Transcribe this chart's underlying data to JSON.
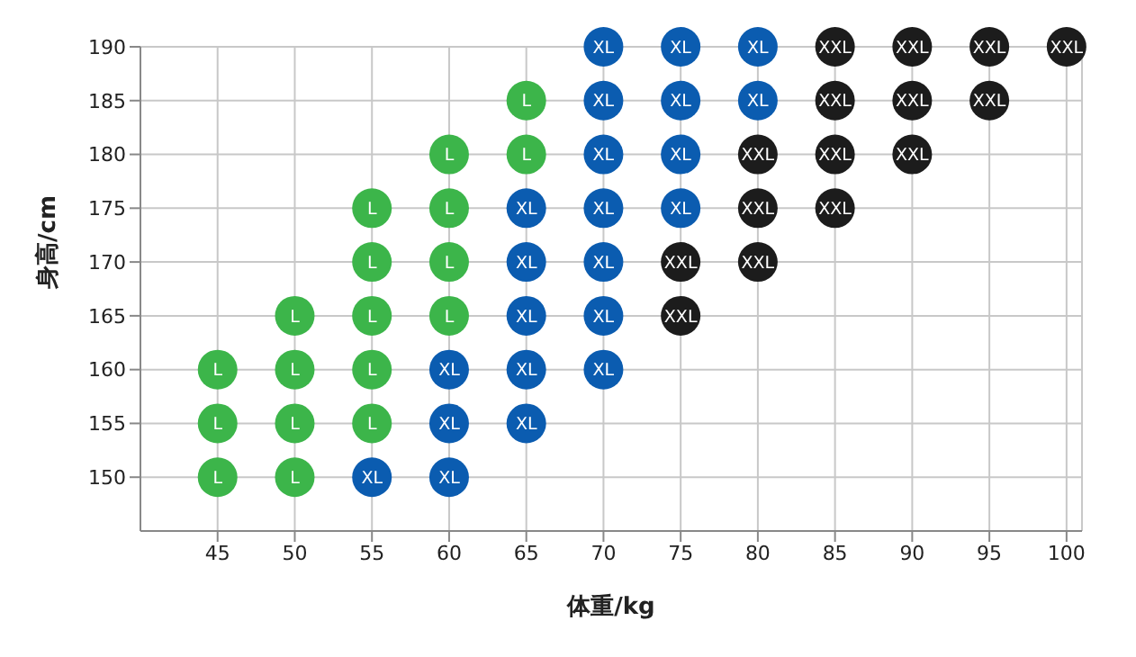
{
  "chart_data": {
    "type": "scatter",
    "xlabel": "体重/kg",
    "ylabel": "身高/cm",
    "xlim": [
      40,
      101
    ],
    "xticks": [
      45,
      50,
      55,
      60,
      65,
      70,
      75,
      80,
      85,
      90,
      95,
      100
    ],
    "ylim": [
      145,
      190
    ],
    "yticks": [
      150,
      155,
      160,
      165,
      170,
      175,
      180,
      185,
      190
    ],
    "grid": true,
    "legend": false,
    "marker": "circle",
    "series": [
      {
        "name": "L",
        "color": "#3cb54a",
        "x": [
          45,
          45,
          45,
          50,
          50,
          50,
          50,
          55,
          55,
          55,
          55,
          55,
          60,
          60,
          60,
          60,
          65,
          65
        ],
        "values": [
          150,
          155,
          160,
          150,
          155,
          160,
          165,
          155,
          160,
          165,
          170,
          175,
          165,
          170,
          175,
          180,
          180,
          185
        ]
      },
      {
        "name": "XL",
        "color": "#0b5cb0",
        "x": [
          55,
          60,
          60,
          60,
          65,
          65,
          65,
          65,
          65,
          70,
          70,
          70,
          70,
          70,
          70,
          70,
          75,
          75,
          75,
          75,
          80,
          80
        ],
        "values": [
          150,
          150,
          155,
          160,
          155,
          160,
          165,
          170,
          175,
          160,
          165,
          170,
          175,
          180,
          185,
          190,
          175,
          180,
          185,
          190,
          185,
          190
        ]
      },
      {
        "name": "XXL",
        "color": "#1c1c1c",
        "x": [
          75,
          75,
          80,
          80,
          80,
          85,
          85,
          85,
          85,
          90,
          90,
          90,
          95,
          95,
          100
        ],
        "values": [
          165,
          170,
          170,
          175,
          180,
          175,
          180,
          185,
          190,
          180,
          185,
          190,
          185,
          190,
          190
        ]
      }
    ]
  }
}
